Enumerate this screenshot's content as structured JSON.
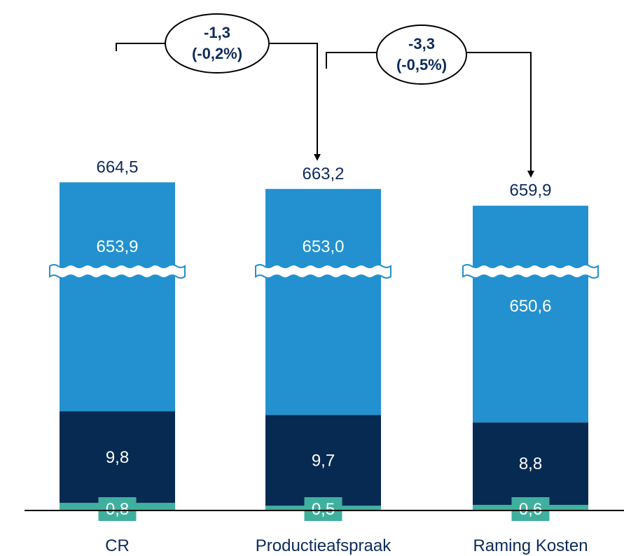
{
  "chart_data": {
    "type": "bar",
    "stacked": true,
    "axis_break": true,
    "categories": [
      "CR",
      "Productieafspraak",
      "Raming Kosten"
    ],
    "totals": [
      "664,5",
      "663,2",
      "659,9"
    ],
    "total_values": [
      664.5,
      663.2,
      659.9
    ],
    "series": [
      {
        "values": [
          0.8,
          0.5,
          0.6
        ],
        "labels": [
          "0,8",
          "0,5",
          "0,6"
        ]
      },
      {
        "values": [
          9.8,
          9.7,
          8.8
        ],
        "labels": [
          "9,8",
          "9,7",
          "8,8"
        ]
      },
      {
        "values": [
          653.9,
          653.0,
          650.6
        ],
        "labels": [
          "653,9",
          "653,0",
          "650,6"
        ]
      }
    ],
    "annotations": [
      {
        "from": "CR",
        "to": "Productieafspraak",
        "line1": "-1,3",
        "line2": "(-0,2%)"
      },
      {
        "from": "Productieafspraak",
        "to": "Raming Kosten",
        "line1": "-3,3",
        "line2": "(-0,5%)"
      }
    ],
    "colors": {
      "top": "#2391cf",
      "middle": "#072a52",
      "bottom": "#40b09e",
      "text": "#0d2b5a"
    },
    "grid": false,
    "legend": "none"
  }
}
